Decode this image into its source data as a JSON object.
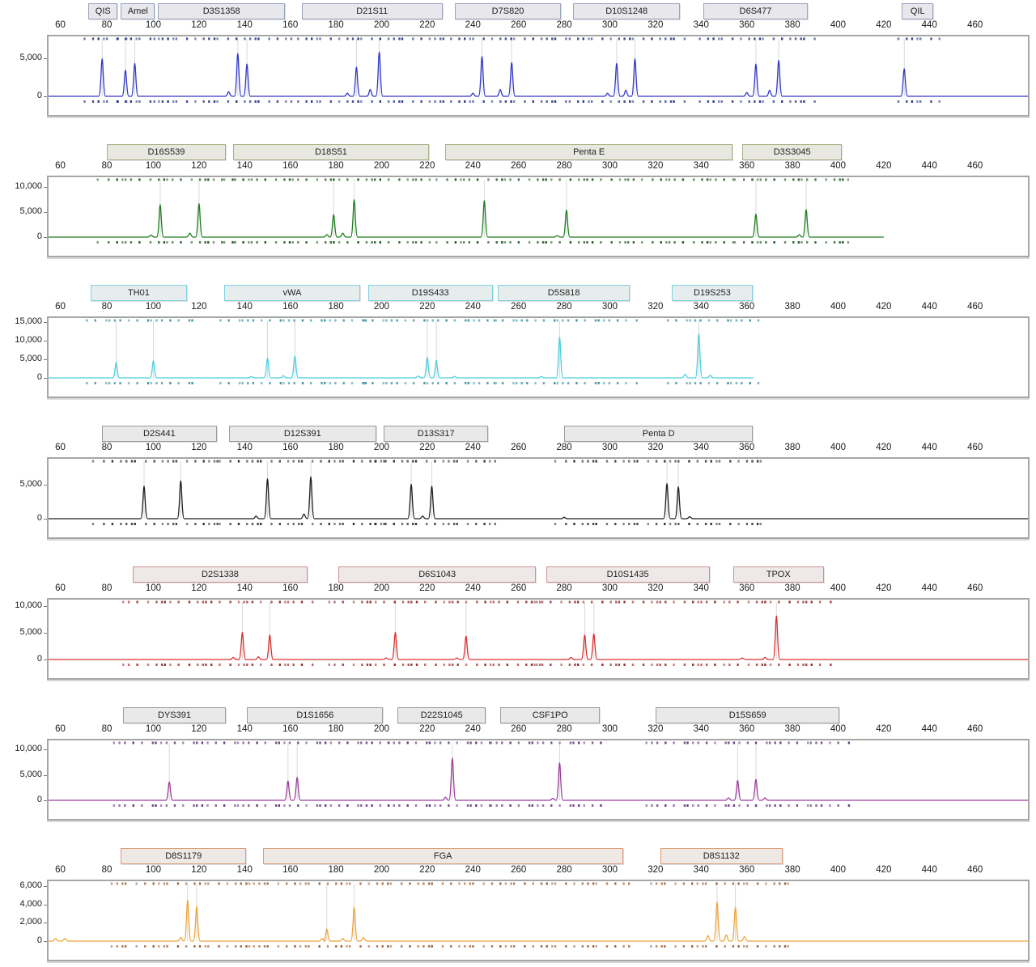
{
  "chart_data": {
    "type": "line",
    "title": "Capillary electrophoresis STR electropherogram, 7 dye channels",
    "x_axis": {
      "range": [
        55,
        474
      ],
      "tick_values": [
        60,
        80,
        100,
        120,
        140,
        160,
        180,
        200,
        220,
        240,
        260,
        280,
        300,
        320,
        340,
        360,
        380,
        400,
        420,
        440,
        460
      ],
      "tick_labels": [
        "60",
        "80",
        "100",
        "120",
        "140",
        "160",
        "180",
        "200",
        "220",
        "240",
        "260",
        "280",
        "300",
        "320",
        "340",
        "360",
        "380",
        "400",
        "420",
        "440",
        "460"
      ]
    },
    "panels": [
      {
        "name": "blue-dye",
        "trace_color": "#3038c8",
        "dash_color": "#1c2a7a",
        "box_border": "#9aa3bf",
        "box_fill": "#e8e8ec",
        "ymax": 7500,
        "trace_end": 474,
        "y_ticks": [
          {
            "label": "5,000",
            "value": 5000
          },
          {
            "label": "0",
            "value": 0
          }
        ],
        "markers": [
          {
            "label": "QIS",
            "start": 72,
            "end": 84
          },
          {
            "label": "Amel",
            "start": 86,
            "end": 100
          },
          {
            "label": "D3S1358",
            "start": 102,
            "end": 157
          },
          {
            "label": "D21S11",
            "start": 165,
            "end": 226
          },
          {
            "label": "D7S820",
            "start": 232,
            "end": 278
          },
          {
            "label": "D10S1248",
            "start": 284,
            "end": 330
          },
          {
            "label": "D6S477",
            "start": 341,
            "end": 386
          },
          {
            "label": "QIL",
            "start": 428,
            "end": 441
          }
        ],
        "peaks": [
          [
            78,
            4900
          ],
          [
            88,
            3400
          ],
          [
            92,
            4300
          ],
          [
            133,
            600
          ],
          [
            137,
            5600
          ],
          [
            141,
            4200
          ],
          [
            185,
            400
          ],
          [
            189,
            3800
          ],
          [
            195,
            900
          ],
          [
            199,
            5800
          ],
          [
            240,
            400
          ],
          [
            244,
            5200
          ],
          [
            252,
            900
          ],
          [
            257,
            4400
          ],
          [
            299,
            400
          ],
          [
            303,
            4300
          ],
          [
            307,
            800
          ],
          [
            311,
            4900
          ],
          [
            360,
            500
          ],
          [
            364,
            4200
          ],
          [
            370,
            800
          ],
          [
            374,
            4700
          ],
          [
            429,
            3600
          ]
        ]
      },
      {
        "name": "green-dye",
        "trace_color": "#1e7d1e",
        "dash_color": "#145214",
        "box_border": "#a8b284",
        "box_fill": "#e8e8e0",
        "ymax": 11500,
        "trace_end": 420,
        "y_ticks": [
          {
            "label": "10,000",
            "value": 10000
          },
          {
            "label": "5,000",
            "value": 5000
          },
          {
            "label": "0",
            "value": 0
          }
        ],
        "markers": [
          {
            "label": "D16S539",
            "start": 80,
            "end": 131
          },
          {
            "label": "D18S51",
            "start": 135,
            "end": 220
          },
          {
            "label": "Penta E",
            "start": 228,
            "end": 353
          },
          {
            "label": "D3S3045",
            "start": 358,
            "end": 401
          }
        ],
        "peaks": [
          [
            99,
            400
          ],
          [
            103,
            6500
          ],
          [
            116,
            800
          ],
          [
            120,
            6700
          ],
          [
            176,
            500
          ],
          [
            179,
            4500
          ],
          [
            183,
            800
          ],
          [
            188,
            7500
          ],
          [
            245,
            7300
          ],
          [
            277,
            300
          ],
          [
            281,
            5400
          ],
          [
            364,
            4600
          ],
          [
            383,
            500
          ],
          [
            386,
            5500
          ]
        ]
      },
      {
        "name": "cyan-dye",
        "trace_color": "#4ed0e0",
        "dash_color": "#2b8f9c",
        "box_border": "#7cd2e0",
        "box_fill": "#e7eded",
        "ymax": 15500,
        "trace_end": 363,
        "y_ticks": [
          {
            "label": "15,000",
            "value": 15000
          },
          {
            "label": "10,000",
            "value": 10000
          },
          {
            "label": "5,000",
            "value": 5000
          },
          {
            "label": "0",
            "value": 0
          }
        ],
        "markers": [
          {
            "label": "TH01",
            "start": 73,
            "end": 114
          },
          {
            "label": "vWA",
            "start": 131,
            "end": 190
          },
          {
            "label": "D19S433",
            "start": 194,
            "end": 248
          },
          {
            "label": "D5S818",
            "start": 251,
            "end": 308
          },
          {
            "label": "D19S253",
            "start": 327,
            "end": 362
          }
        ],
        "peaks": [
          [
            84,
            4100
          ],
          [
            100,
            4600
          ],
          [
            143,
            400
          ],
          [
            150,
            5300
          ],
          [
            157,
            600
          ],
          [
            162,
            5900
          ],
          [
            216,
            500
          ],
          [
            220,
            5500
          ],
          [
            224,
            4700
          ],
          [
            232,
            400
          ],
          [
            270,
            400
          ],
          [
            278,
            11000
          ],
          [
            333,
            1000
          ],
          [
            339,
            11900
          ],
          [
            344,
            700
          ]
        ]
      },
      {
        "name": "black-dye",
        "trace_color": "#1f1f1f",
        "dash_color": "#222222",
        "box_border": "#9c9c9c",
        "box_fill": "#e9e9e9",
        "ymax": 8500,
        "trace_end": 474,
        "y_ticks": [
          {
            "label": "5,000",
            "value": 5000
          },
          {
            "label": "0",
            "value": 0
          }
        ],
        "markers": [
          {
            "label": "D2S441",
            "start": 78,
            "end": 127
          },
          {
            "label": "D12S391",
            "start": 133,
            "end": 197
          },
          {
            "label": "D13S317",
            "start": 201,
            "end": 246
          },
          {
            "label": "Penta D",
            "start": 280,
            "end": 362
          }
        ],
        "peaks": [
          [
            96,
            4800
          ],
          [
            112,
            5600
          ],
          [
            145,
            400
          ],
          [
            150,
            5900
          ],
          [
            166,
            700
          ],
          [
            169,
            6200
          ],
          [
            213,
            5100
          ],
          [
            218,
            400
          ],
          [
            222,
            4800
          ],
          [
            280,
            200
          ],
          [
            325,
            5200
          ],
          [
            330,
            4700
          ],
          [
            335,
            300
          ]
        ]
      },
      {
        "name": "red-dye",
        "trace_color": "#da3030",
        "dash_color": "#8e2020",
        "box_border": "#d09090",
        "box_fill": "#eee8e8",
        "ymax": 10800,
        "trace_end": 474,
        "y_ticks": [
          {
            "label": "10,000",
            "value": 10000
          },
          {
            "label": "5,000",
            "value": 5000
          },
          {
            "label": "0",
            "value": 0
          }
        ],
        "markers": [
          {
            "label": "D2S1338",
            "start": 91,
            "end": 167
          },
          {
            "label": "D6S1043",
            "start": 181,
            "end": 267
          },
          {
            "label": "D10S1435",
            "start": 272,
            "end": 343
          },
          {
            "label": "TPOX",
            "start": 354,
            "end": 393
          }
        ],
        "peaks": [
          [
            135,
            400
          ],
          [
            139,
            5100
          ],
          [
            146,
            500
          ],
          [
            151,
            4600
          ],
          [
            202,
            300
          ],
          [
            206,
            5100
          ],
          [
            233,
            300
          ],
          [
            237,
            4400
          ],
          [
            283,
            400
          ],
          [
            289,
            4600
          ],
          [
            293,
            4800
          ],
          [
            358,
            300
          ],
          [
            368,
            400
          ],
          [
            373,
            8200
          ]
        ]
      },
      {
        "name": "purple-dye",
        "trace_color": "#9c3f9c",
        "dash_color": "#5a2d6e",
        "box_border": "#a39aa3",
        "box_fill": "#e9e9e9",
        "ymax": 11300,
        "trace_end": 474,
        "y_ticks": [
          {
            "label": "10,000",
            "value": 10000
          },
          {
            "label": "5,000",
            "value": 5000
          },
          {
            "label": "0",
            "value": 0
          }
        ],
        "markers": [
          {
            "label": "DYS391",
            "start": 87,
            "end": 131
          },
          {
            "label": "D1S1656",
            "start": 141,
            "end": 200
          },
          {
            "label": "D22S1045",
            "start": 207,
            "end": 245
          },
          {
            "label": "CSF1PO",
            "start": 252,
            "end": 295
          },
          {
            "label": "D15S659",
            "start": 320,
            "end": 400
          }
        ],
        "peaks": [
          [
            107,
            3600
          ],
          [
            159,
            3800
          ],
          [
            163,
            4500
          ],
          [
            228,
            600
          ],
          [
            231,
            8300
          ],
          [
            275,
            400
          ],
          [
            278,
            7400
          ],
          [
            352,
            500
          ],
          [
            356,
            3900
          ],
          [
            364,
            4100
          ],
          [
            368,
            500
          ]
        ]
      },
      {
        "name": "orange-dye",
        "trace_color": "#f0a43c",
        "dash_color": "#96582a",
        "box_border": "#dc9b76",
        "box_fill": "#eee9e4",
        "ymax": 6300,
        "trace_end": 474,
        "y_ticks": [
          {
            "label": "6,000",
            "value": 6000
          },
          {
            "label": "4,000",
            "value": 4000
          },
          {
            "label": "2,000",
            "value": 2000
          },
          {
            "label": "0",
            "value": 0
          }
        ],
        "markers": [
          {
            "label": "D8S1179",
            "start": 86,
            "end": 140
          },
          {
            "label": "FGA",
            "start": 148,
            "end": 305
          },
          {
            "label": "D8S1132",
            "start": 322,
            "end": 375
          }
        ],
        "peaks": [
          [
            58,
            300
          ],
          [
            62,
            300
          ],
          [
            112,
            400
          ],
          [
            115,
            4500
          ],
          [
            119,
            3800
          ],
          [
            174,
            300
          ],
          [
            176,
            1300
          ],
          [
            183,
            300
          ],
          [
            188,
            3700
          ],
          [
            192,
            400
          ],
          [
            343,
            600
          ],
          [
            347,
            4300
          ],
          [
            351,
            700
          ],
          [
            355,
            3700
          ],
          [
            359,
            500
          ]
        ]
      }
    ]
  }
}
